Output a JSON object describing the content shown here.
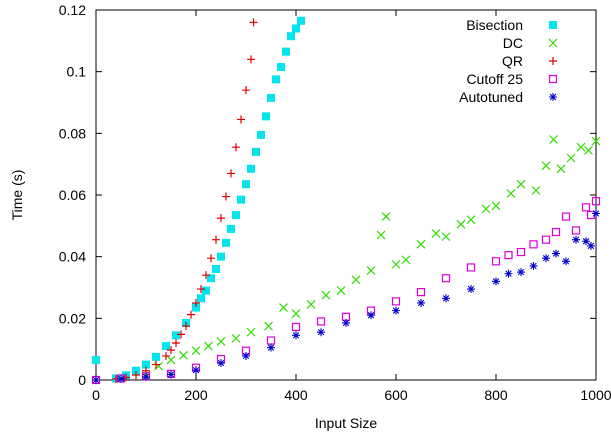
{
  "chart_data": {
    "type": "scatter",
    "title": "",
    "xlabel": "Input Size",
    "ylabel": "Time (s)",
    "xlim": [
      0,
      1000
    ],
    "ylim": [
      0,
      0.12
    ],
    "x_ticks": [
      0,
      200,
      400,
      600,
      800,
      1000
    ],
    "x_tick_labels": [
      "0",
      "200",
      "400",
      "600",
      "800",
      "1000"
    ],
    "y_ticks": [
      0,
      0.02,
      0.04,
      0.06,
      0.08,
      0.1,
      0.12
    ],
    "y_tick_labels": [
      "0",
      "0.02",
      "0.04",
      "0.06",
      "0.08",
      "0.1",
      "0.12"
    ],
    "grid": false,
    "legend_position": "top-right",
    "series": [
      {
        "name": "Bisection",
        "marker": "filled-square",
        "color": "#00e5ee",
        "x": [
          0,
          40,
          60,
          80,
          100,
          120,
          140,
          160,
          180,
          200,
          210,
          220,
          230,
          240,
          250,
          260,
          270,
          280,
          290,
          300,
          310,
          320,
          330,
          340,
          350,
          360,
          370,
          380,
          390,
          400,
          410
        ],
        "y": [
          0.0065,
          0.0005,
          0.0015,
          0.003,
          0.005,
          0.0075,
          0.011,
          0.0145,
          0.0185,
          0.0235,
          0.0265,
          0.029,
          0.033,
          0.036,
          0.04,
          0.0445,
          0.049,
          0.0535,
          0.0585,
          0.0635,
          0.0685,
          0.074,
          0.0795,
          0.0855,
          0.0915,
          0.0975,
          0.1015,
          0.1065,
          0.1115,
          0.114,
          0.1165
        ]
      },
      {
        "name": "DC",
        "marker": "x",
        "color": "#33dd00",
        "x": [
          100,
          125,
          150,
          175,
          200,
          225,
          250,
          280,
          310,
          345,
          375,
          400,
          430,
          460,
          490,
          520,
          550,
          570,
          580,
          600,
          620,
          650,
          680,
          700,
          730,
          750,
          780,
          800,
          830,
          850,
          880,
          900,
          915,
          930,
          950,
          970,
          985,
          1000
        ],
        "y": [
          0.0015,
          0.0045,
          0.0065,
          0.008,
          0.0095,
          0.011,
          0.0125,
          0.0135,
          0.0155,
          0.0175,
          0.0235,
          0.0215,
          0.0245,
          0.0275,
          0.029,
          0.0325,
          0.0355,
          0.047,
          0.053,
          0.0375,
          0.039,
          0.044,
          0.0475,
          0.0465,
          0.0505,
          0.052,
          0.0555,
          0.0565,
          0.0605,
          0.0635,
          0.0615,
          0.0695,
          0.078,
          0.0685,
          0.072,
          0.0755,
          0.0745,
          0.0775
        ]
      },
      {
        "name": "QR",
        "marker": "plus",
        "color": "#dd0000",
        "x": [
          40,
          60,
          80,
          100,
          120,
          140,
          150,
          160,
          170,
          180,
          190,
          200,
          210,
          220,
          230,
          240,
          250,
          260,
          270,
          280,
          290,
          300,
          310,
          315
        ],
        "y": [
          0.0003,
          0.0008,
          0.0016,
          0.003,
          0.005,
          0.0078,
          0.0097,
          0.012,
          0.0148,
          0.0175,
          0.0212,
          0.025,
          0.0295,
          0.034,
          0.0395,
          0.0455,
          0.0525,
          0.0595,
          0.067,
          0.0755,
          0.0845,
          0.094,
          0.104,
          0.116
        ]
      },
      {
        "name": "Cutoff 25",
        "marker": "open-square",
        "color": "#dd00dd",
        "x": [
          0,
          50,
          100,
          150,
          200,
          250,
          300,
          350,
          400,
          450,
          500,
          550,
          600,
          650,
          700,
          750,
          800,
          825,
          850,
          875,
          900,
          920,
          940,
          960,
          980,
          990,
          1000
        ],
        "y": [
          0,
          0.0005,
          0.0012,
          0.002,
          0.004,
          0.0068,
          0.0095,
          0.0128,
          0.0172,
          0.019,
          0.0205,
          0.0225,
          0.0255,
          0.0285,
          0.033,
          0.0365,
          0.0385,
          0.0405,
          0.0415,
          0.044,
          0.0455,
          0.048,
          0.053,
          0.0485,
          0.056,
          0.0535,
          0.058
        ]
      },
      {
        "name": "Autotuned",
        "marker": "asterisk",
        "color": "#0000cc",
        "x": [
          0,
          50,
          100,
          150,
          200,
          250,
          300,
          350,
          400,
          450,
          500,
          550,
          600,
          650,
          700,
          750,
          800,
          825,
          850,
          875,
          900,
          920,
          940,
          960,
          980,
          990,
          1000
        ],
        "y": [
          0,
          0.0004,
          0.001,
          0.0018,
          0.0032,
          0.0055,
          0.0078,
          0.0105,
          0.0145,
          0.0155,
          0.0185,
          0.021,
          0.0225,
          0.025,
          0.0265,
          0.0295,
          0.032,
          0.0345,
          0.035,
          0.037,
          0.0395,
          0.041,
          0.0385,
          0.0455,
          0.045,
          0.0435,
          0.054
        ]
      }
    ]
  }
}
